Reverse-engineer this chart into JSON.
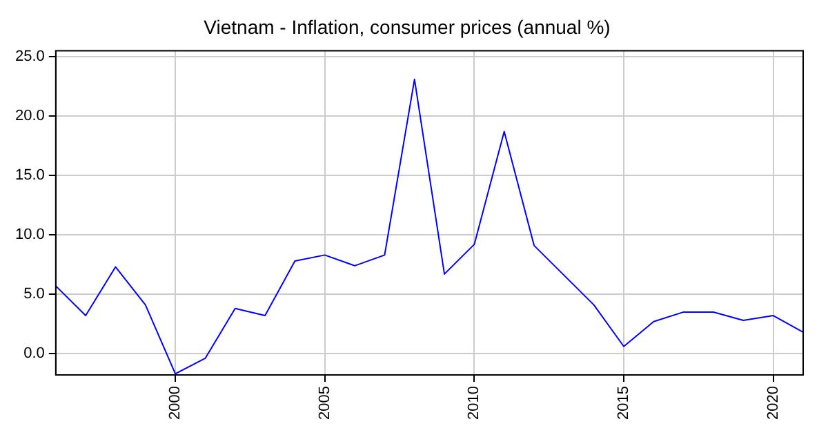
{
  "chart_data": {
    "type": "line",
    "title": "Vietnam - Inflation, consumer prices (annual %)",
    "x": [
      1996,
      1997,
      1998,
      1999,
      2000,
      2001,
      2002,
      2003,
      2004,
      2005,
      2006,
      2007,
      2008,
      2009,
      2010,
      2011,
      2012,
      2013,
      2014,
      2015,
      2016,
      2017,
      2018,
      2019,
      2020,
      2021
    ],
    "series": [
      {
        "color": "#0000ff",
        "values": [
          5.7,
          3.2,
          7.3,
          4.1,
          -1.7,
          -0.4,
          3.8,
          3.2,
          7.8,
          8.3,
          7.4,
          8.3,
          23.1,
          6.7,
          9.2,
          18.7,
          9.1,
          6.6,
          4.1,
          0.6,
          2.7,
          3.5,
          3.5,
          2.8,
          3.2,
          1.8
        ]
      }
    ],
    "xlim": [
      1996,
      2021
    ],
    "xticks": [
      2000,
      2005,
      2010,
      2015,
      2020
    ],
    "ylim": [
      -1.8,
      25.5
    ],
    "yticks": [
      {
        "value": 0,
        "label": "0.0"
      },
      {
        "value": 5,
        "label": "5.0"
      },
      {
        "value": 10,
        "label": "10.0"
      },
      {
        "value": 15,
        "label": "15.0"
      },
      {
        "value": 20,
        "label": "20.0"
      },
      {
        "value": 25,
        "label": "25.0"
      }
    ],
    "grid": true,
    "legend": false,
    "marker": "none",
    "line_style": "solid"
  }
}
